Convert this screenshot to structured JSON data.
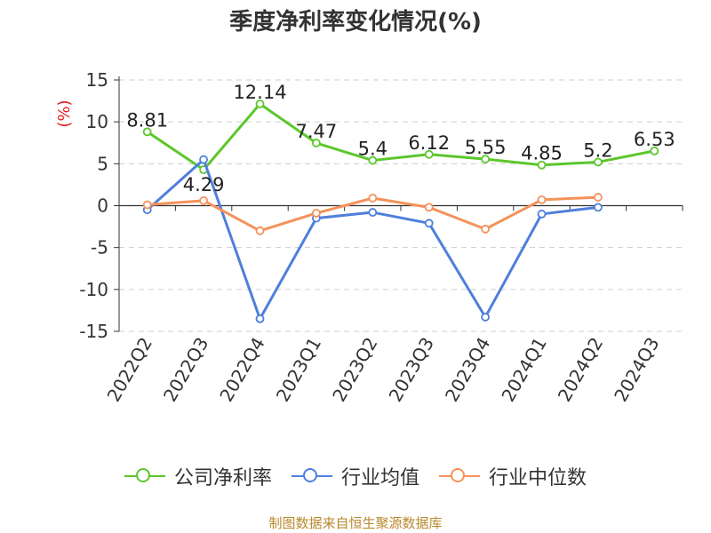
{
  "chart_data": {
    "type": "line",
    "title": "季度净利率变化情况(%)",
    "ylabel": "(%)",
    "xlabel": "",
    "categories": [
      "2022Q2",
      "2022Q3",
      "2022Q4",
      "2023Q1",
      "2023Q2",
      "2023Q3",
      "2023Q4",
      "2024Q1",
      "2024Q2",
      "2024Q3"
    ],
    "ylim": [
      -15,
      15
    ],
    "yticks": [
      15,
      10,
      5,
      0,
      -5,
      -10,
      -15
    ],
    "grid": true,
    "legend_position": "bottom",
    "series": [
      {
        "name": "公司净利率",
        "color": "#5cc72c",
        "values": [
          8.81,
          4.29,
          12.14,
          7.47,
          5.4,
          6.12,
          5.55,
          4.85,
          5.2,
          6.53
        ],
        "labels": [
          "8.81",
          "4.29",
          "12.14",
          "7.47",
          "5.4",
          "6.12",
          "5.55",
          "4.85",
          "5.2",
          "6.53"
        ]
      },
      {
        "name": "行业均值",
        "color": "#4f7fdc",
        "values": [
          -0.5,
          5.5,
          -13.5,
          -1.5,
          -0.8,
          -2.1,
          -13.3,
          -1.0,
          -0.2,
          null
        ]
      },
      {
        "name": "行业中位数",
        "color": "#f4925a",
        "values": [
          0.1,
          0.6,
          -3.0,
          -0.9,
          0.9,
          -0.2,
          -2.8,
          0.7,
          1.0,
          null
        ]
      }
    ]
  },
  "source": "制图数据来自恒生聚源数据库"
}
